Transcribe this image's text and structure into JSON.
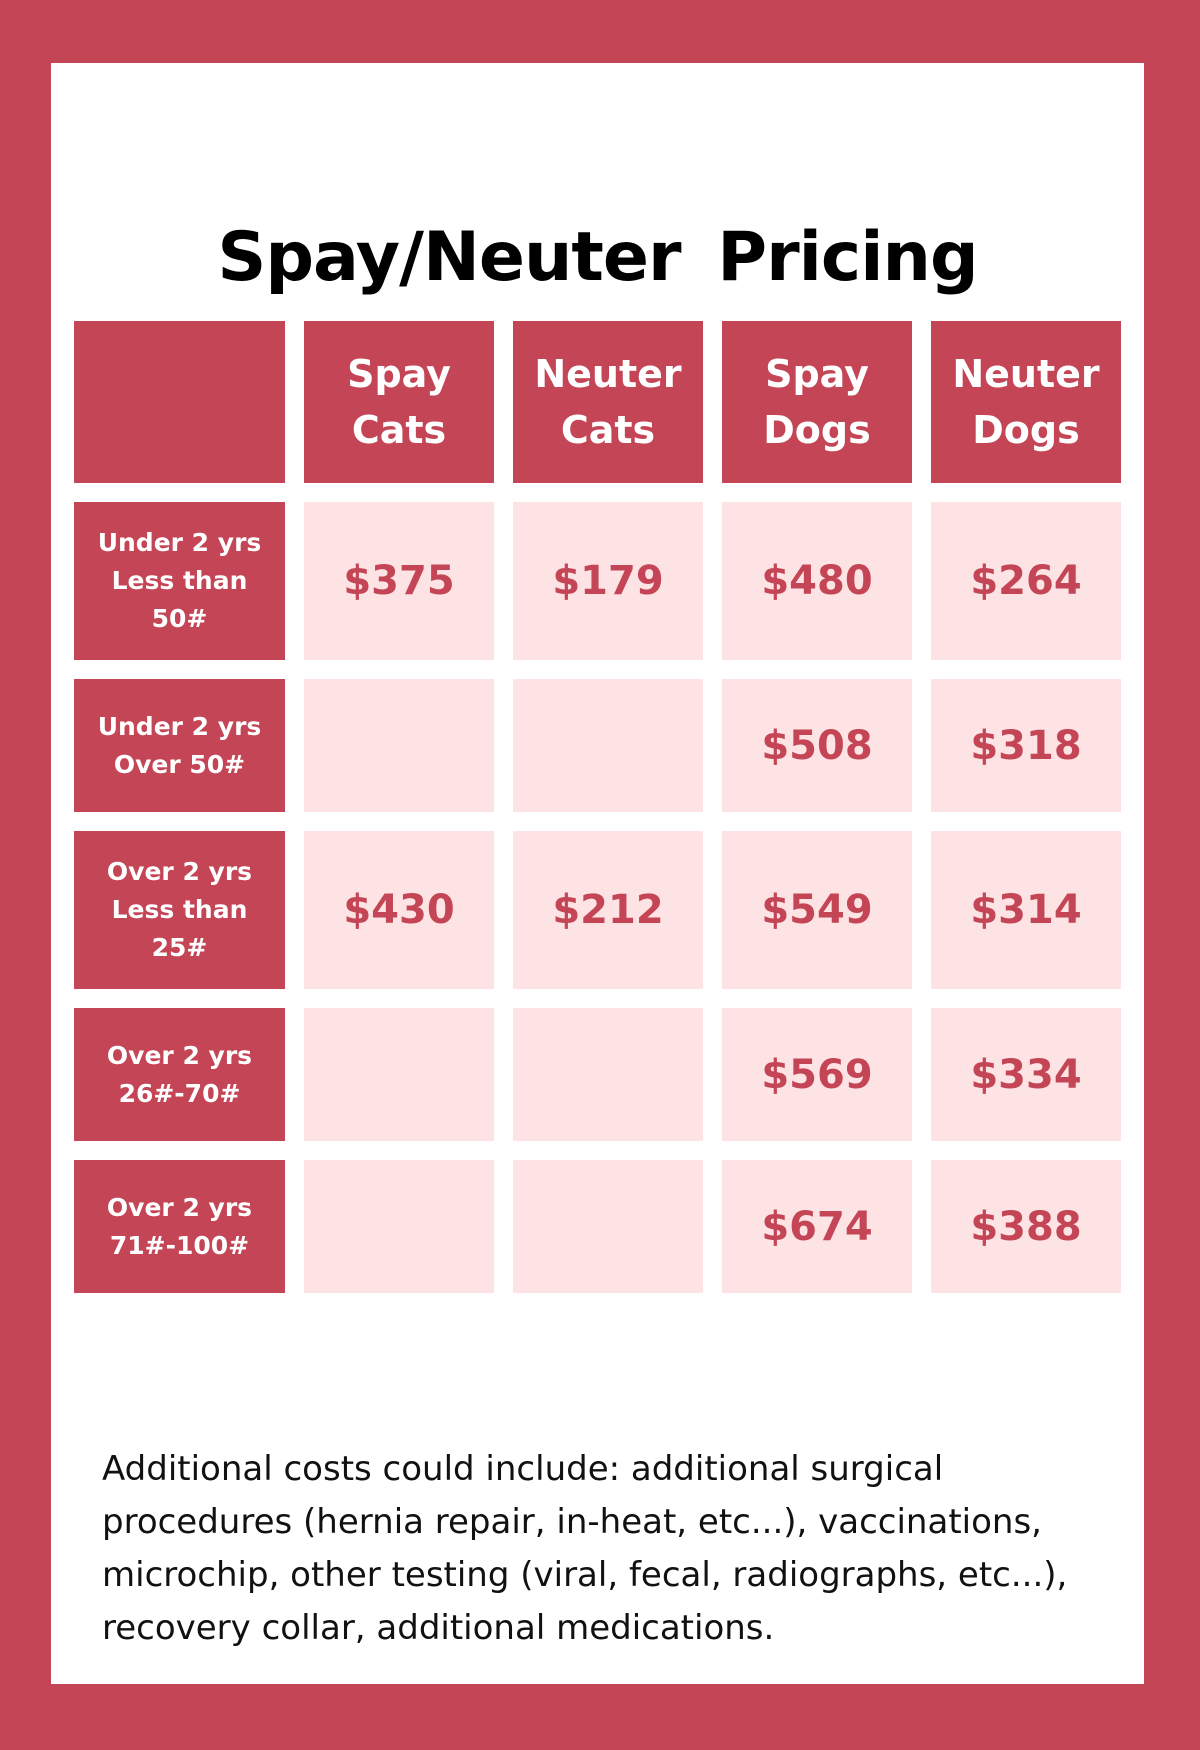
{
  "title": "Spay/Neuter  Pricing",
  "table": {
    "corner": "",
    "columns": [
      "Spay\nCats",
      "Neuter\nCats",
      "Spay\nDogs",
      "Neuter\nDogs"
    ],
    "rows": [
      {
        "label": "Under 2 yrs\nLess than\n50#",
        "prices": [
          "$375",
          "$179",
          "$480",
          "$264"
        ]
      },
      {
        "label": "Under 2 yrs\nOver 50#",
        "prices": [
          "",
          "",
          "$508",
          "$318"
        ]
      },
      {
        "label": "Over 2 yrs\nLess than\n25#",
        "prices": [
          "$430",
          "$212",
          "$549",
          "$314"
        ]
      },
      {
        "label": "Over 2 yrs\n26#-70#",
        "prices": [
          "",
          "",
          "$569",
          "$334"
        ]
      },
      {
        "label": "Over 2 yrs\n71#-100#",
        "prices": [
          "",
          "",
          "$674",
          "$388"
        ]
      }
    ]
  },
  "note": "Additional costs could include: additional surgical procedures (hernia repair, in-heat, etc...), vaccinations, microchip, other testing (viral, fecal, radiographs, etc...), recovery collar, additional medications.",
  "colors": {
    "accent": "#c44556",
    "price_cell": "#fde3e4",
    "card": "#ffffff"
  }
}
